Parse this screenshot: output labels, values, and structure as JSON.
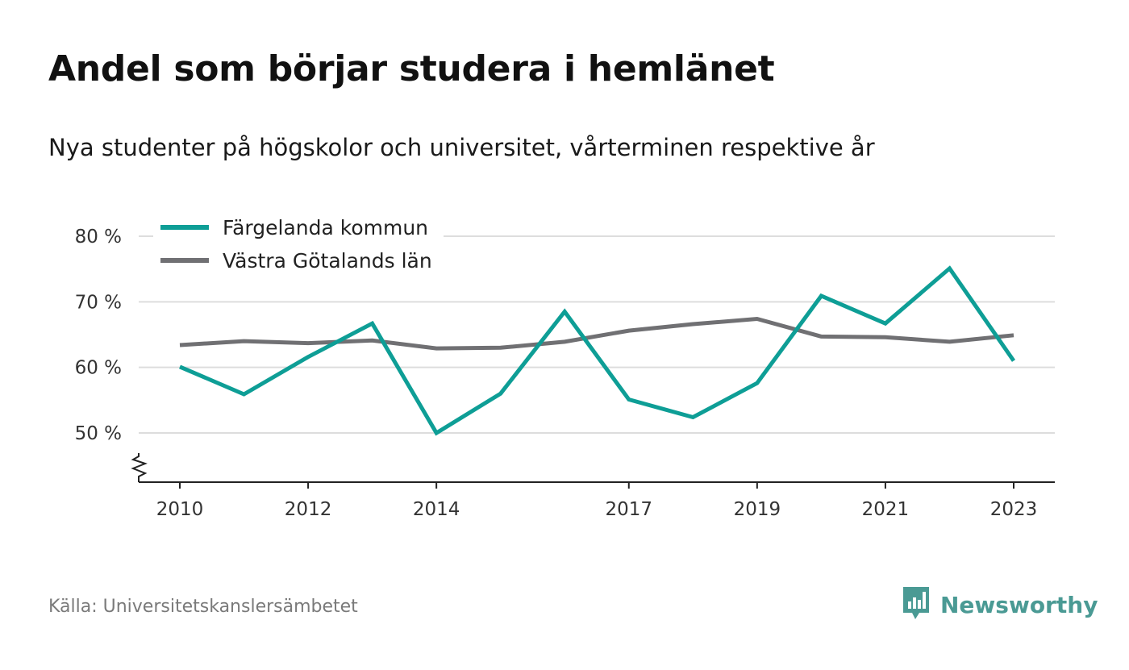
{
  "header": {
    "title": "Andel som börjar studera i hemlänet",
    "subtitle": "Nya studenter på högskolor och universitet, vårterminen respektive år"
  },
  "footer": {
    "source": "Källa: Universitetskanslersämbetet",
    "brand": "Newsworthy",
    "brand_icon": "bar-chart-speech-bubble-icon"
  },
  "colors": {
    "series1": "#0e9e96",
    "series2": "#707073",
    "grid": "#dddddd",
    "axis": "#222222",
    "brand": "#4a9a94"
  },
  "chart_data": {
    "type": "line",
    "x": [
      2010,
      2011,
      2012,
      2013,
      2014,
      2015,
      2016,
      2017,
      2018,
      2019,
      2020,
      2021,
      2022,
      2023
    ],
    "x_tick_labels": [
      "2010",
      "2012",
      "2014",
      "2017",
      "2019",
      "2021",
      "2023"
    ],
    "y_tick_labels": [
      "50 %",
      "60 %",
      "70 %",
      "80 %"
    ],
    "y_ticks": [
      50,
      60,
      70,
      80
    ],
    "ylim": [
      43,
      82
    ],
    "y_axis_break": true,
    "grid": true,
    "legend_position": "top-left",
    "series": [
      {
        "name": "Färgelanda kommun",
        "color": "#0e9e96",
        "values": [
          60.1,
          55.9,
          61.6,
          66.7,
          50.0,
          56.0,
          68.5,
          55.1,
          52.4,
          57.6,
          70.9,
          66.7,
          75.1,
          61.0
        ]
      },
      {
        "name": "Västra Götalands län",
        "color": "#707073",
        "values": [
          63.4,
          64.0,
          63.7,
          64.1,
          62.9,
          63.0,
          63.9,
          65.6,
          66.6,
          67.4,
          64.7,
          64.6,
          63.9,
          64.9
        ]
      }
    ]
  }
}
